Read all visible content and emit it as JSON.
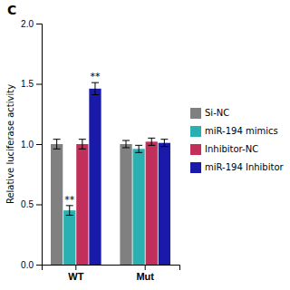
{
  "chart_data": {
    "type": "bar",
    "title": "C",
    "categories": [
      "WT",
      "Mut"
    ],
    "series": [
      {
        "name": "Si-NC",
        "color": "#808080",
        "values": [
          1.0,
          1.0
        ],
        "errors": [
          0.04,
          0.03
        ]
      },
      {
        "name": "miR-194 mimics",
        "color": "#2ab0b0",
        "values": [
          0.45,
          0.96
        ],
        "errors": [
          0.04,
          0.03
        ]
      },
      {
        "name": "Inhibitor-NC",
        "color": "#c0305a",
        "values": [
          1.0,
          1.02
        ],
        "errors": [
          0.04,
          0.03
        ]
      },
      {
        "name": "miR-194 Inhibitor",
        "color": "#1a1aaa",
        "values": [
          1.46,
          1.01
        ],
        "errors": [
          0.05,
          0.03
        ]
      }
    ],
    "ylabel": "Relative luciferase activity",
    "ylim": [
      0,
      2.0
    ],
    "yticks": [
      {
        "value": 0,
        "label": "0.0"
      },
      0.5,
      {
        "value": 1.0,
        "label": "1.0"
      },
      1.5,
      {
        "value": 2.0,
        "label": "2.0"
      }
    ],
    "annotations": [
      {
        "text": "**",
        "x": "WT",
        "series": "miR-194 mimics"
      },
      {
        "text": "**",
        "x": "WT",
        "series": "miR-194 Inhibitor"
      }
    ],
    "grid": false,
    "legend": "right"
  }
}
